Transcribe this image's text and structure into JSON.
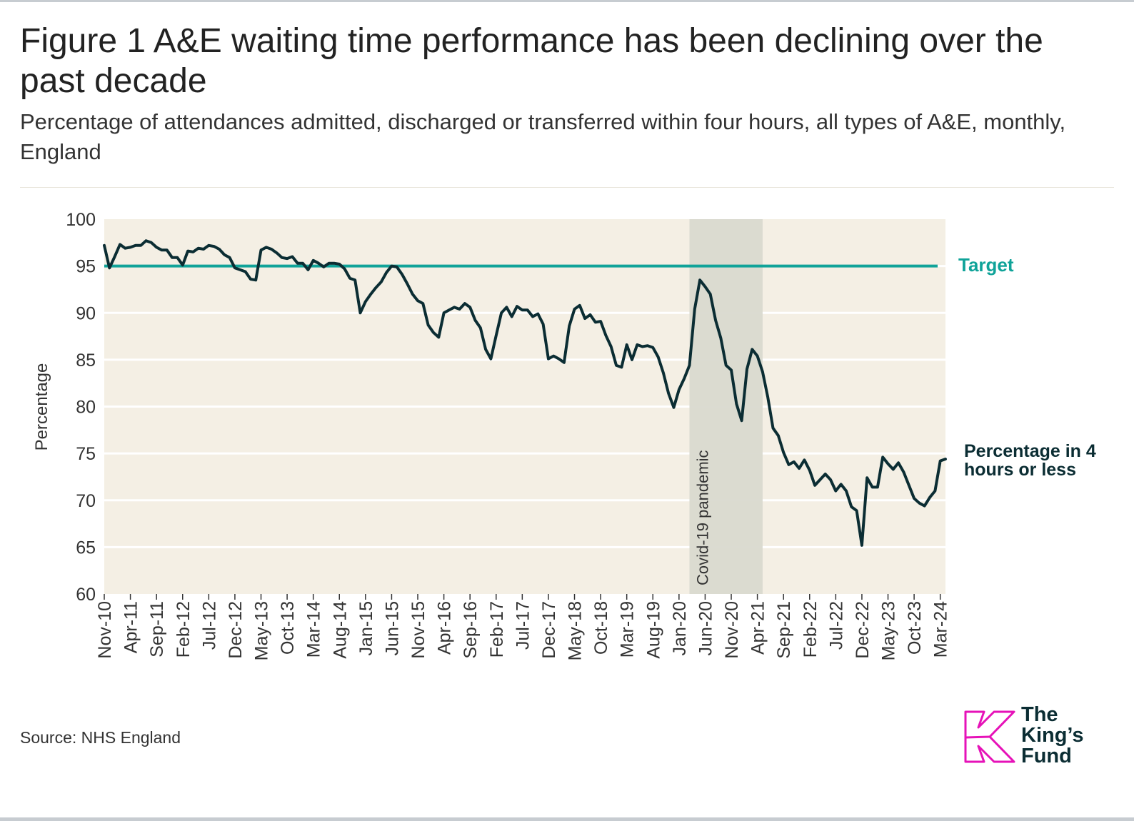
{
  "header": {
    "title": "Figure 1 A&E waiting time performance has been declining over the past decade",
    "subtitle": "Percentage of attendances admitted, discharged or transferred within four hours, all types of A&E, monthly, England"
  },
  "footer": {
    "source": "Source: NHS England"
  },
  "logo": {
    "line1": "The",
    "line2": "King’s",
    "line3": "Fund",
    "colors": {
      "mark": "#e612b8",
      "text": "#0b2d33"
    }
  },
  "chart_data": {
    "type": "line",
    "ylabel": "Percentage",
    "ylim": [
      60,
      100
    ],
    "yticks": [
      60,
      65,
      70,
      75,
      80,
      85,
      90,
      95,
      100
    ],
    "grid": "horizontal",
    "x_tick_labels": [
      "Nov-10",
      "Apr-11",
      "Sep-11",
      "Feb-12",
      "Jul-12",
      "Dec-12",
      "May-13",
      "Oct-13",
      "Mar-14",
      "Aug-14",
      "Jan-15",
      "Jun-15",
      "Nov-15",
      "Apr-16",
      "Sep-16",
      "Feb-17",
      "Jul-17",
      "Dec-17",
      "May-18",
      "Oct-18",
      "Mar-19",
      "Aug-19",
      "Jan-20",
      "Jun-20",
      "Nov-20",
      "Apr-21",
      "Sep-21",
      "Feb-22",
      "Jul-22",
      "Dec-22",
      "May-23",
      "Oct-23",
      "Mar-24"
    ],
    "target": {
      "label": "Target",
      "value": 95,
      "color": "#10a399"
    },
    "shaded_region": {
      "label": "Covid-19 pandemic",
      "start": "Mar-20",
      "end": "May-21",
      "color": "#d9d9cf"
    },
    "series": [
      {
        "name": "Percentage in 4 hours or less",
        "color": "#0b2d33",
        "start": "Nov-10",
        "end": "Mar-24",
        "values": [
          97.2,
          94.8,
          96.0,
          97.3,
          96.9,
          97.0,
          97.2,
          97.2,
          97.7,
          97.5,
          97.0,
          96.7,
          96.7,
          95.9,
          95.9,
          95.1,
          96.6,
          96.5,
          96.9,
          96.8,
          97.2,
          97.1,
          96.8,
          96.2,
          95.9,
          94.8,
          94.6,
          94.4,
          93.6,
          93.5,
          96.7,
          97.0,
          96.8,
          96.4,
          95.9,
          95.8,
          96.0,
          95.3,
          95.3,
          94.6,
          95.6,
          95.3,
          94.9,
          95.3,
          95.3,
          95.2,
          94.7,
          93.7,
          93.5,
          90.0,
          91.2,
          92.0,
          92.7,
          93.3,
          94.3,
          95.0,
          94.9,
          94.1,
          93.1,
          92.0,
          91.3,
          91.0,
          88.7,
          87.9,
          87.4,
          90.0,
          90.3,
          90.6,
          90.4,
          91.0,
          90.6,
          89.2,
          88.4,
          86.1,
          85.1,
          87.6,
          90.0,
          90.6,
          89.6,
          90.7,
          90.3,
          90.3,
          89.6,
          89.9,
          88.8,
          85.1,
          85.4,
          85.1,
          84.7,
          88.6,
          90.4,
          90.8,
          89.4,
          89.8,
          89.0,
          89.1,
          87.6,
          86.4,
          84.4,
          84.2,
          86.6,
          85.0,
          86.6,
          86.4,
          86.5,
          86.3,
          85.3,
          83.6,
          81.4,
          79.9,
          81.8,
          83.0,
          84.4,
          90.4,
          93.5,
          92.8,
          92.0,
          89.2,
          87.3,
          84.4,
          83.9,
          80.3,
          78.5,
          84.0,
          86.1,
          85.4,
          83.7,
          81.0,
          77.7,
          76.9,
          75.1,
          73.8,
          74.1,
          73.4,
          74.3,
          73.2,
          71.6,
          72.2,
          72.8,
          72.2,
          71.0,
          71.7,
          71.0,
          69.3,
          68.9,
          65.2,
          72.4,
          71.4,
          71.4,
          74.6,
          73.9,
          73.3,
          74.0,
          73.0,
          71.6,
          70.2,
          69.7,
          69.4,
          70.3,
          71.0,
          74.2,
          74.4
        ]
      }
    ]
  }
}
